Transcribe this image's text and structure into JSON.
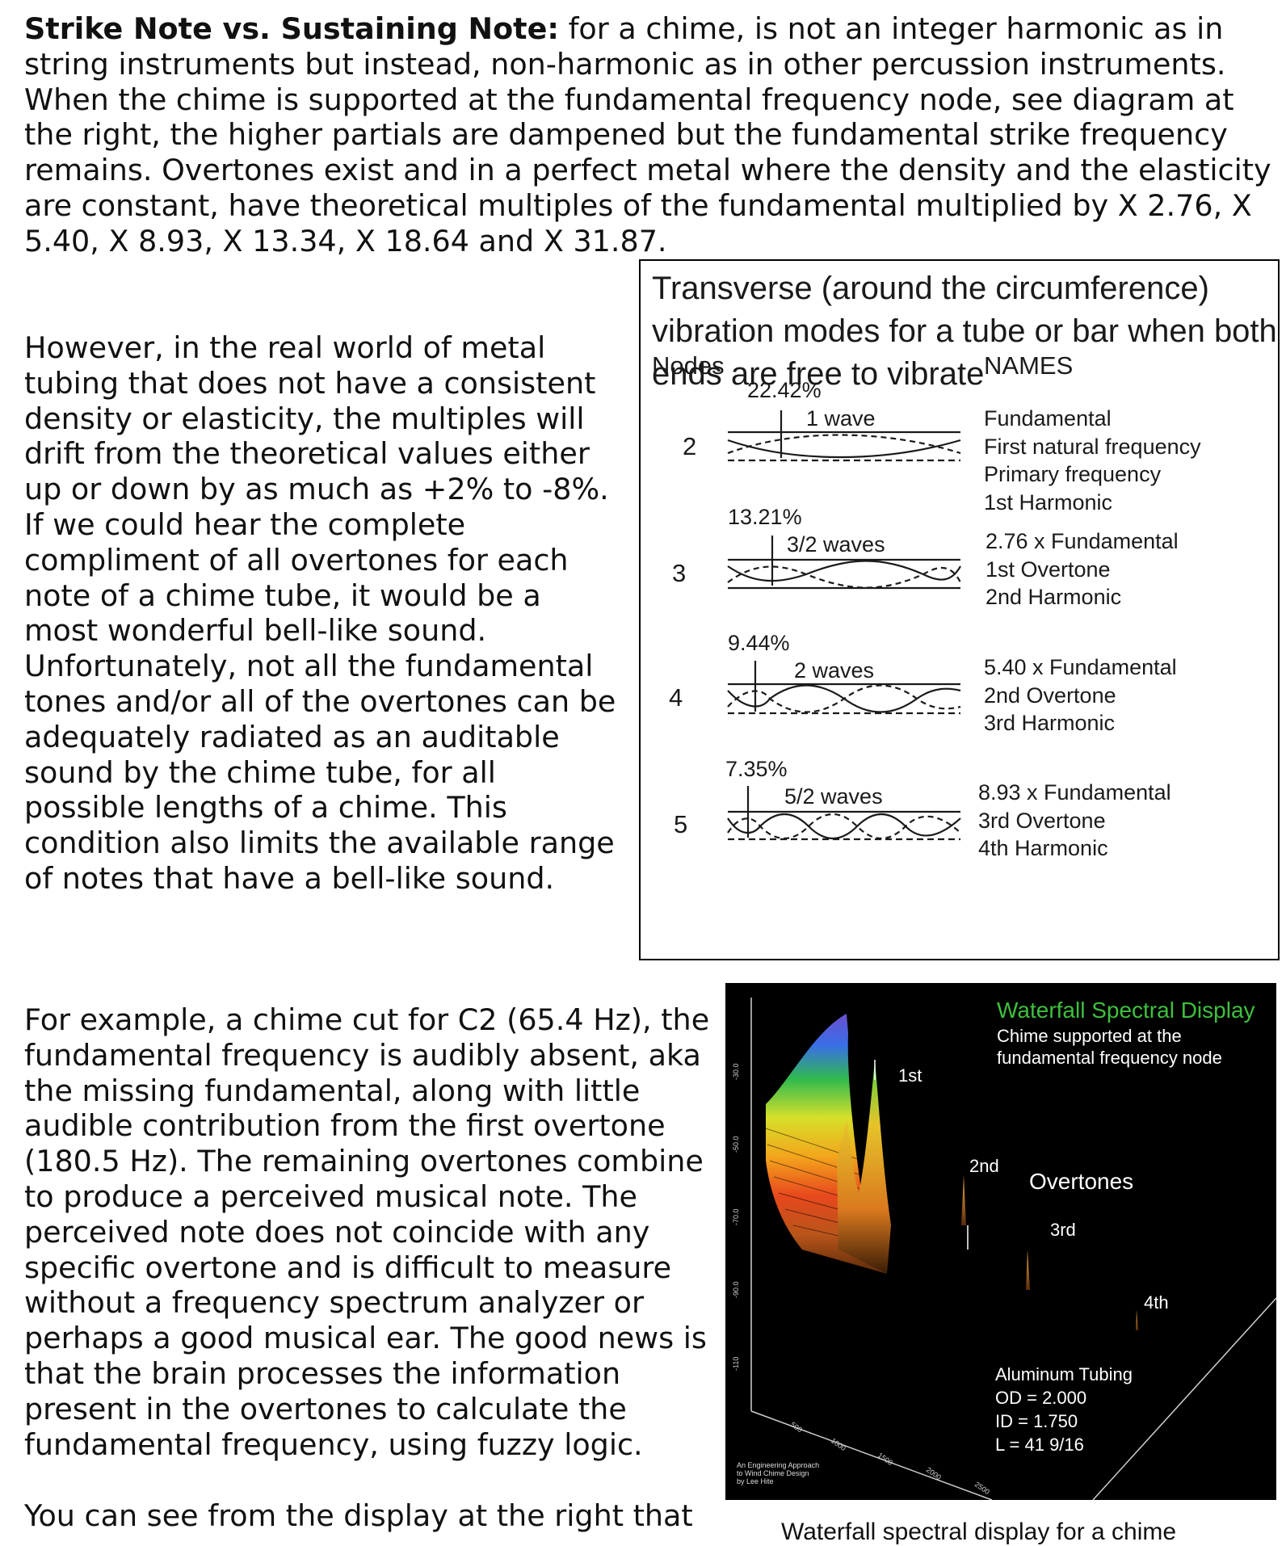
{
  "intro": {
    "heading": "Strike Note vs. Sustaining Note:",
    "text": " for a chime, is not an integer harmonic as in string instruments but instead, non-harmonic as in other percussion instruments. When the chime is supported at the fundamental frequency node, see diagram at the right, the higher partials are dampened but the fundamental strike frequency remains. Overtones exist and in a perfect metal where the density and the elasticity are constant, have theoretical multiples of the fundamental multiplied by X 2.76, X 5.40, X 8.93, X 13.34, X 18.64 and X 31.87."
  },
  "paragraphs": {
    "p2": "However, in the real world of metal tubing that does not have a consistent density or elasticity, the multiples will drift from the theoretical values either up or down by as much as +2% to -8%.",
    "p3": "If we could hear the complete compliment of all overtones for each note of a chime tube, it would be a most wonderful bell-like sound. Unfortunately, not all the fundamental tones and/or all of the overtones can be adequately radiated as an auditable sound by the chime tube, for all possible lengths of a chime. This condition also limits the available range of notes that have a bell-like sound.",
    "p4": "For example, a chime cut for C2 (65.4 Hz), the fundamental frequency is audibly absent, aka the missing fundamental, along with little audible contribution from the first overtone (180.5 Hz). The remaining overtones combine to produce a perceived musical note. The perceived note does not coincide with any specific overtone and is difficult to measure without a frequency spectrum analyzer or perhaps a good musical ear. The good news is that the brain processes the information present in the overtones to calculate the fundamental frequency, using fuzzy logic.",
    "p5": "You can see from the display at the right that"
  },
  "modes_figure": {
    "title": "Transverse (around the circumference) vibration modes for a tube or bar when both ends are free to vibrate",
    "nodes_header": "Nodes",
    "names_header": "NAMES",
    "modes": [
      {
        "nodes": "2",
        "percent": "22.42%",
        "waves": "1 wave",
        "names": [
          "Fundamental",
          "First natural frequency",
          "Primary frequency",
          "1st Harmonic"
        ]
      },
      {
        "nodes": "3",
        "percent": "13.21%",
        "waves": "3/2 waves",
        "names": [
          "2.76 x Fundamental",
          "1st Overtone",
          "2nd Harmonic"
        ]
      },
      {
        "nodes": "4",
        "percent": "9.44%",
        "waves": "2 waves",
        "names": [
          "5.40 x Fundamental",
          "2nd Overtone",
          "3rd Harmonic"
        ]
      },
      {
        "nodes": "5",
        "percent": "7.35%",
        "waves": "5/2 waves",
        "names": [
          "8.93 x Fundamental",
          "3rd Overtone",
          "4th Harmonic"
        ]
      }
    ]
  },
  "waterfall": {
    "title": "Waterfall Spectral Display",
    "subtitle": "Chime supported at the fundamental frequency node",
    "labels": {
      "first": "1st",
      "second": "2nd",
      "overtones": "Overtones",
      "third": "3rd",
      "fourth": "4th"
    },
    "tubing": [
      "Aluminum Tubing",
      "OD = 2.000",
      "ID = 1.750",
      "L = 41 9/16"
    ],
    "credit": [
      "An Engineering Approach",
      "to Wind Chime Design",
      "by Lee Hite"
    ],
    "caption": "Waterfall spectral display for a chime",
    "colors": {
      "title": "#3ec03e",
      "background": "#000000"
    }
  }
}
